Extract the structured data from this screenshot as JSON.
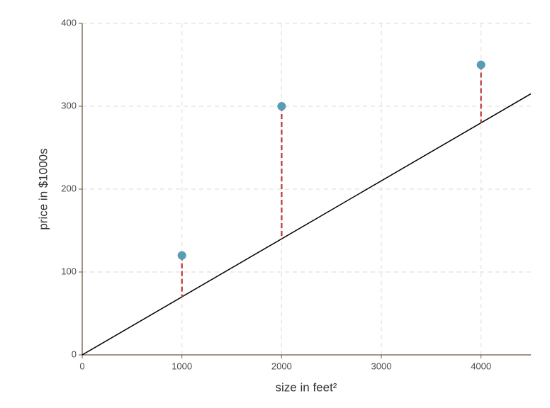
{
  "chart_data": {
    "type": "scatter",
    "xlabel": "size in feet²",
    "ylabel": "price in $1000s",
    "series": [
      {
        "color": "#579db6",
        "x": [
          1000,
          2000,
          4000
        ],
        "values": [
          120,
          300,
          350
        ]
      }
    ],
    "line": {
      "color": "#000000",
      "x": [
        0,
        4500
      ],
      "y": [
        0,
        315
      ]
    },
    "residual_color": "#c2474a",
    "xlim": [
      0,
      4500
    ],
    "ylim": [
      0,
      400
    ],
    "xticks": [
      0,
      1000,
      2000,
      3000,
      4000
    ],
    "yticks": [
      0,
      100,
      200,
      300,
      400
    ],
    "grid": true
  }
}
